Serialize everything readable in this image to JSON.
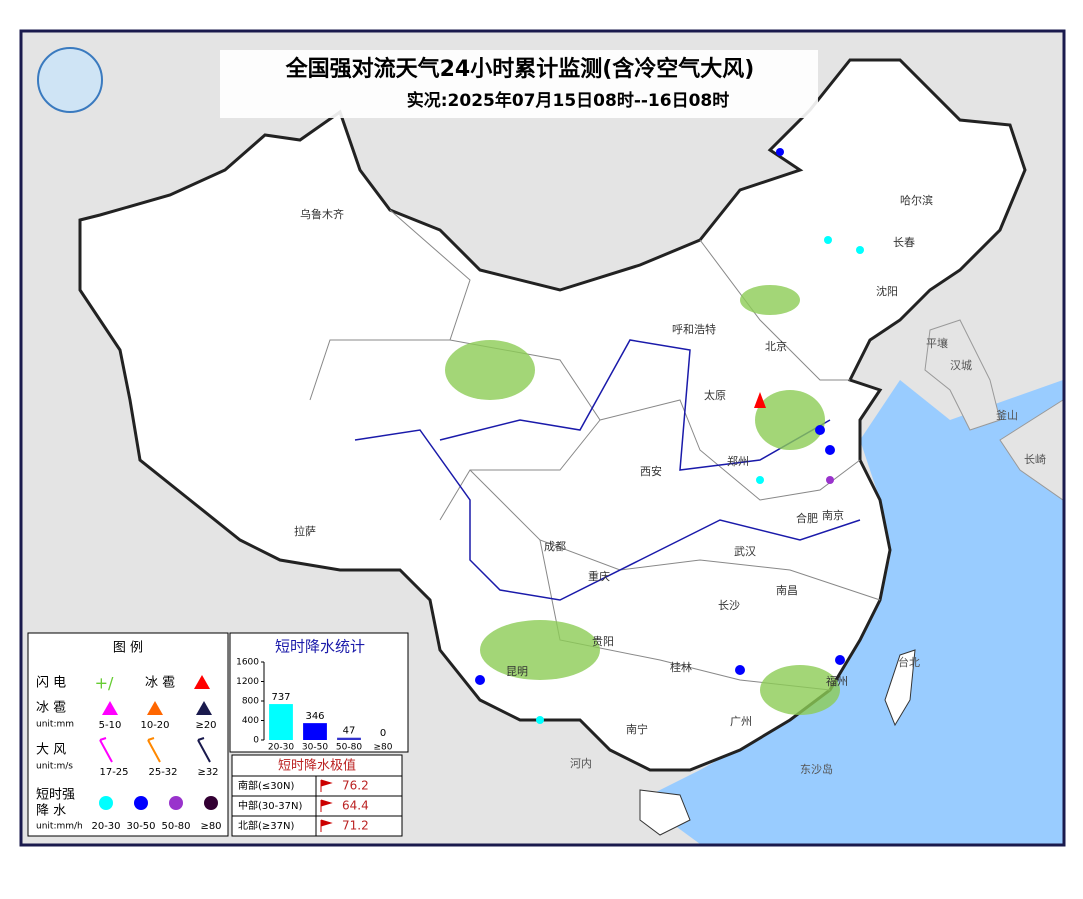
{
  "header": {
    "title": "全国强对流天气24小时累计监测(含冷空气大风)",
    "subtitle": "实况:2025年07月15日08时--16日08时"
  },
  "cities": [
    "乌鲁木齐",
    "哈尔滨",
    "长春",
    "沈阳",
    "呼和浩特",
    "北京",
    "太原",
    "郑州",
    "西安",
    "南京",
    "合肥",
    "武汉",
    "成都",
    "重庆",
    "长沙",
    "南昌",
    "贵阳",
    "昆明",
    "桂林",
    "南宁",
    "广州",
    "拉萨",
    "福州"
  ],
  "foreign": [
    "平壤",
    "汉城",
    "釜山",
    "长崎",
    "台北",
    "东沙岛",
    "河内"
  ],
  "legend": {
    "title": "图 例",
    "lightning": "闪 电",
    "hail_short": "冰 雹",
    "hail": "冰 雹",
    "hail_unit": "unit:mm",
    "hail_ranges": [
      "5-10",
      "10-20",
      "≥20"
    ],
    "wind": "大 风",
    "wind_unit": "unit:m/s",
    "wind_ranges": [
      "17-25",
      "25-32",
      "≥32"
    ],
    "rain": [
      "短时强",
      "降 水"
    ],
    "rain_unit": "unit:mm/h",
    "rain_ranges": [
      "20-30",
      "30-50",
      "50-80",
      "≥80"
    ]
  },
  "chart_data": {
    "type": "bar",
    "title": "短时降水统计",
    "categories": [
      "20-30",
      "30-50",
      "50-80",
      "≥80"
    ],
    "values": [
      737,
      346,
      47,
      0
    ],
    "colors": [
      "#00ffff",
      "#0000ff",
      "#3333cc",
      "#330033"
    ],
    "ylim": [
      0,
      1600
    ],
    "yticks": [
      0,
      400,
      800,
      1200,
      1600
    ]
  },
  "extremes": {
    "title": "短时降水极值",
    "rows": [
      [
        "南部(≤30N)",
        "76.2"
      ],
      [
        "中部(30-37N)",
        "64.4"
      ],
      [
        "北部(≥37N)",
        "71.2"
      ]
    ]
  }
}
